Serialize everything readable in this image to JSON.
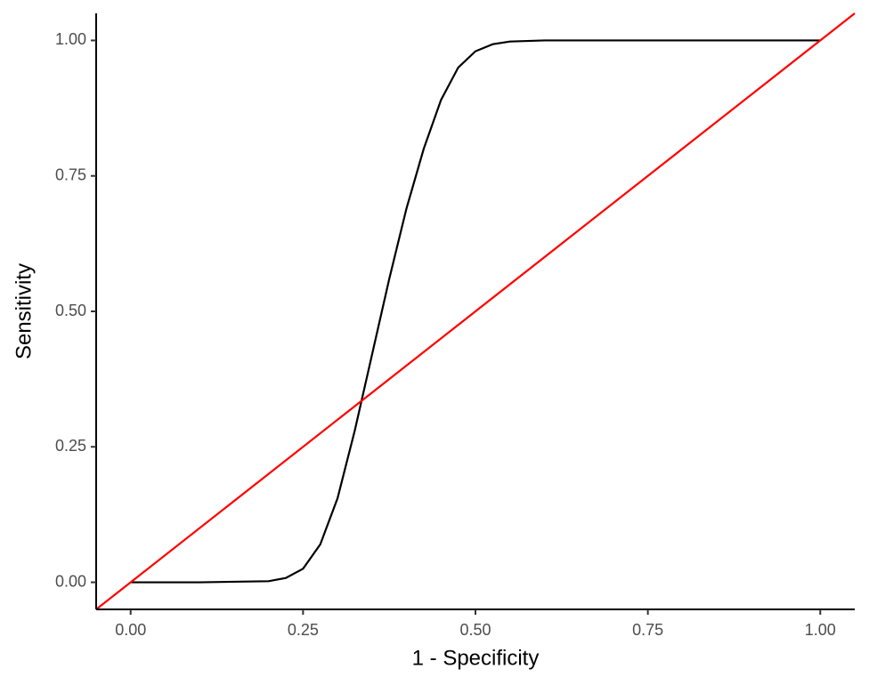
{
  "chart_data": {
    "type": "line",
    "x_label": "1 - Specificity",
    "y_label": "Sensitivity",
    "xlim": [
      -0.05,
      1.05
    ],
    "ylim": [
      -0.05,
      1.05
    ],
    "xticks": [
      {
        "value": 0,
        "label": "0.00"
      },
      {
        "value": 0.25,
        "label": "0.25"
      },
      {
        "value": 0.5,
        "label": "0.50"
      },
      {
        "value": 0.75,
        "label": "0.75"
      },
      {
        "value": 1,
        "label": "1.00"
      }
    ],
    "yticks": [
      {
        "value": 0,
        "label": "0.00"
      },
      {
        "value": 0.25,
        "label": "0.25"
      },
      {
        "value": 0.5,
        "label": "0.50"
      },
      {
        "value": 0.75,
        "label": "0.75"
      },
      {
        "value": 1,
        "label": "1.00"
      }
    ],
    "grid": false,
    "series": [
      {
        "color": "#000000",
        "x": [
          0,
          0.1,
          0.2,
          0.225,
          0.25,
          0.275,
          0.3,
          0.325,
          0.35,
          0.375,
          0.4,
          0.425,
          0.45,
          0.475,
          0.5,
          0.525,
          0.55,
          0.6,
          0.7,
          1.0
        ],
        "values": [
          0,
          0,
          0.002,
          0.008,
          0.025,
          0.07,
          0.155,
          0.28,
          0.42,
          0.56,
          0.69,
          0.8,
          0.89,
          0.95,
          0.98,
          0.993,
          0.998,
          1,
          1,
          1
        ]
      },
      {
        "color": "#ff0000",
        "x": [
          -0.05,
          1.05
        ],
        "values": [
          -0.05,
          1.05
        ]
      }
    ]
  }
}
